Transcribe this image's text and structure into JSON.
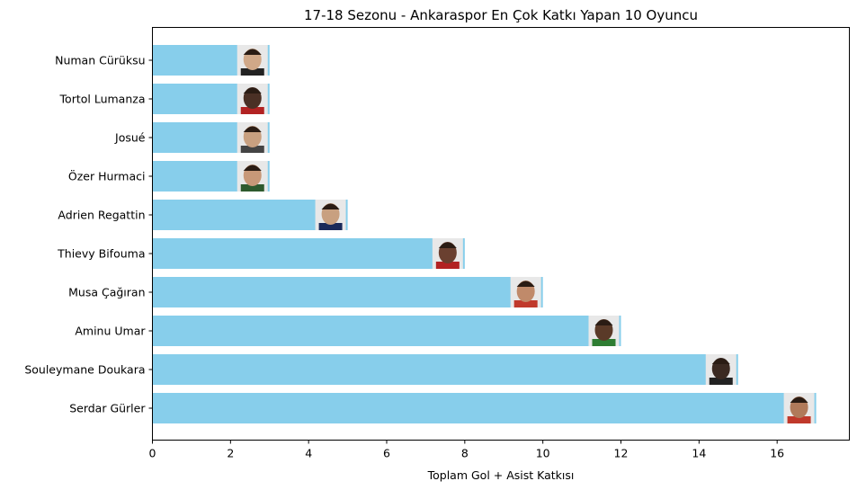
{
  "chart_data": {
    "type": "bar",
    "orientation": "horizontal",
    "title": "17-18 Sezonu - Ankaraspor En Çok Katkı Yapan 10 Oyuncu",
    "xlabel": "Toplam Gol + Asist Katkısı",
    "ylabel": "",
    "categories": [
      "Serdar Gürler",
      "Souleymane Doukara",
      "Aminu Umar",
      "Musa Çağıran",
      "Thievy Bifouma",
      "Adrien Regattin",
      "Özer Hurmaci",
      "Josué",
      "Tortol Lumanza",
      "Numan Cürüksu"
    ],
    "values": [
      17,
      15,
      12,
      10,
      8,
      5,
      3,
      3,
      3,
      3
    ],
    "xlim": [
      0,
      17.85
    ],
    "xticks": [
      0,
      2,
      4,
      6,
      8,
      10,
      12,
      14,
      16
    ],
    "grid": false,
    "bar_color": "#87ceeb",
    "photo_skin_tones": [
      "#b07a5a",
      "#3b2a22",
      "#5a3a28",
      "#c08a6a",
      "#6a4030",
      "#c8a080",
      "#c89878",
      "#c8a080",
      "#4a3025",
      "#d0a888"
    ],
    "photo_shirt_colors": [
      "#c0392b",
      "#222222",
      "#2e7d32",
      "#c0392b",
      "#b22222",
      "#1a2a5a",
      "#2e5a2e",
      "#444444",
      "#b22222",
      "#222222"
    ]
  }
}
